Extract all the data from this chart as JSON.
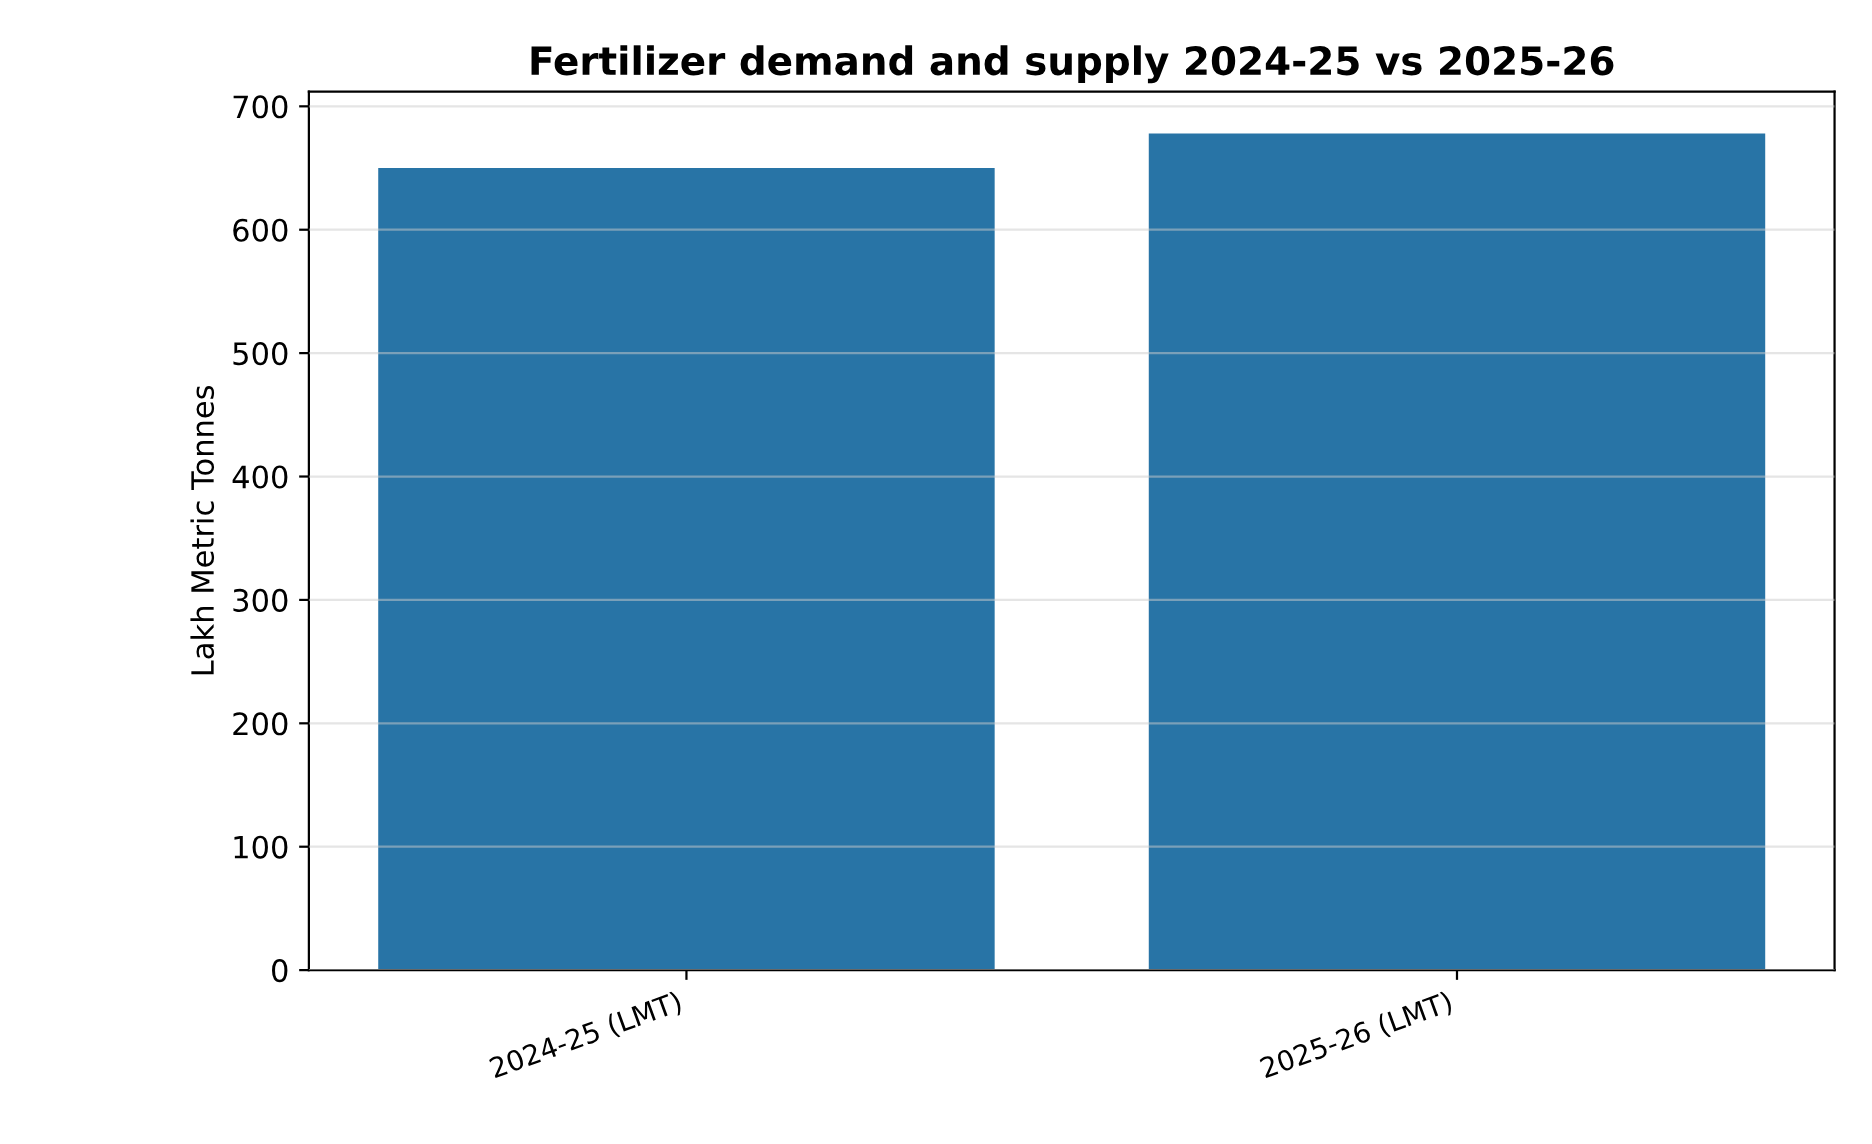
{
  "chart_data": {
    "type": "bar",
    "title": "Fertilizer demand and supply 2024-25 vs 2025-26",
    "ylabel": "Lakh Metric Tonnes",
    "categories": [
      "2024-25 (LMT)",
      "2025-26 (LMT)"
    ],
    "values": [
      650,
      678
    ],
    "color": "#2874a6",
    "ylim": [
      0,
      712
    ],
    "yticks": [
      0,
      100,
      200,
      300,
      400,
      500,
      600,
      700
    ],
    "grid": "y"
  }
}
